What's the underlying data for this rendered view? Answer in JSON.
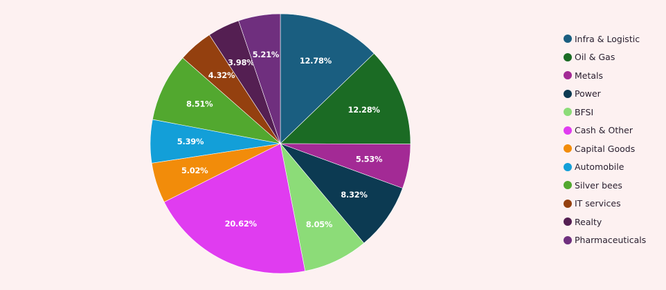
{
  "chart_data": {
    "type": "pie",
    "slices": [
      {
        "label": "Infra & Logistic",
        "value": 12.78,
        "display": "12.78%",
        "color": "#1a5e80"
      },
      {
        "label": "Oil & Gas",
        "value": 12.28,
        "display": "12.28%",
        "color": "#1b6b24"
      },
      {
        "label": "Metals",
        "value": 5.53,
        "display": "5.53%",
        "color": "#a32a95"
      },
      {
        "label": "Power",
        "value": 8.32,
        "display": "8.32%",
        "color": "#0c3a52"
      },
      {
        "label": "BFSI",
        "value": 8.05,
        "display": "8.05%",
        "color": "#8cdc78"
      },
      {
        "label": "Cash & Other",
        "value": 20.62,
        "display": "20.62%",
        "color": "#e03cf0"
      },
      {
        "label": "Capital Goods",
        "value": 5.02,
        "display": "5.02%",
        "color": "#f28c0a"
      },
      {
        "label": "Automobile",
        "value": 5.39,
        "display": "5.39%",
        "color": "#139fd8"
      },
      {
        "label": "Silver bees",
        "value": 8.51,
        "display": "8.51%",
        "color": "#52a82f"
      },
      {
        "label": "IT services",
        "value": 4.32,
        "display": "4.32%",
        "color": "#94400f"
      },
      {
        "label": "Realty",
        "value": 3.98,
        "display": "3.98%",
        "color": "#541f52"
      },
      {
        "label": "Pharmaceuticals",
        "value": 5.21,
        "display": "5.21%",
        "color": "#6f2f7e"
      }
    ],
    "start_angle": "12 o'clock",
    "direction": "clockwise",
    "legend_position": "right",
    "background": "#fdf1f1"
  }
}
